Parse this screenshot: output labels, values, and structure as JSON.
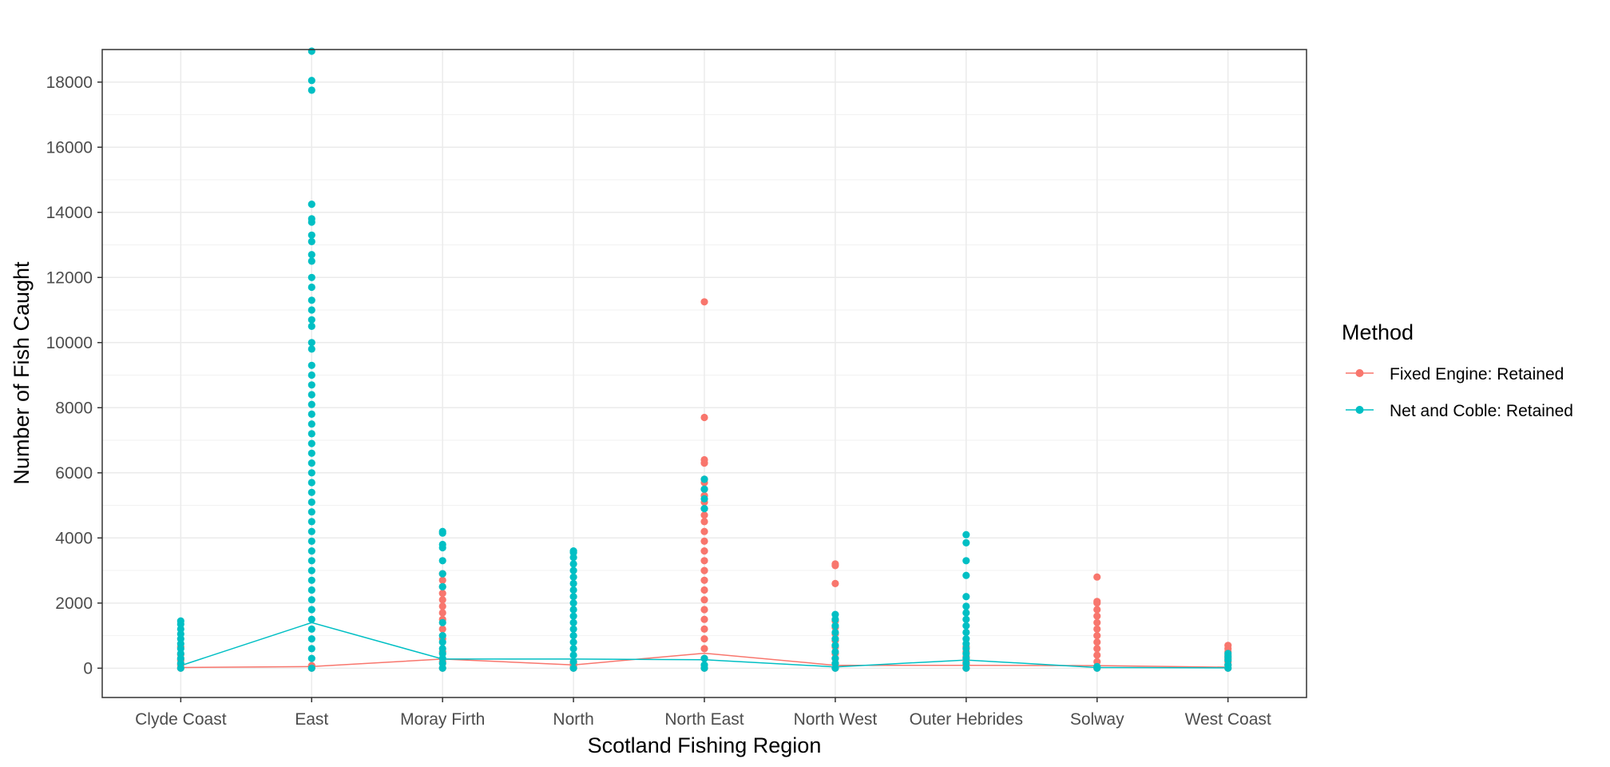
{
  "chart_data": {
    "type": "scatter",
    "xlabel": "Scotland Fishing Region",
    "ylabel": "Number of Fish Caught",
    "categories": [
      "Clyde Coast",
      "East",
      "Moray Firth",
      "North",
      "North East",
      "North West",
      "Outer Hebrides",
      "Solway",
      "West Coast"
    ],
    "ylim": [
      -900,
      19000
    ],
    "yticks": [
      0,
      2000,
      4000,
      6000,
      8000,
      10000,
      12000,
      14000,
      16000,
      18000
    ],
    "grid": true,
    "legend": {
      "title": "Method",
      "position": "right",
      "items": [
        "Fixed Engine: Retained",
        "Net and Coble: Retained"
      ]
    },
    "series": [
      {
        "name": "Fixed Engine: Retained",
        "color": "#F8766D",
        "mean_line": [
          20,
          50,
          280,
          100,
          460,
          90,
          90,
          80,
          30
        ],
        "points": [
          [
            0,
            0,
            100,
            250,
            420,
            650
          ],
          [
            1,
            0,
            80
          ],
          [
            2,
            0,
            200,
            500,
            900,
            1200,
            1500,
            1700,
            1900,
            2100,
            2300,
            2500,
            2700,
            2900
          ],
          [
            3,
            0,
            60,
            150
          ],
          [
            4,
            0,
            300,
            600,
            900,
            1200,
            1500,
            1800,
            2100,
            2400,
            2700,
            3000,
            3300,
            3600,
            3900,
            4200,
            4500,
            4700,
            4900,
            5100,
            5300,
            5500,
            5700,
            5800,
            6300,
            6400,
            7700,
            11250
          ],
          [
            5,
            0,
            150,
            300,
            450,
            650,
            850,
            1050,
            1250,
            1450,
            2600,
            3150,
            3200
          ],
          [
            6,
            0,
            100,
            200,
            350,
            500,
            650
          ],
          [
            7,
            0,
            200,
            400,
            600,
            800,
            1000,
            1200,
            1400,
            1600,
            1800,
            2000,
            2050,
            2800
          ],
          [
            8,
            0,
            100,
            200,
            300,
            400,
            500,
            600,
            700
          ]
        ]
      },
      {
        "name": "Net and Coble: Retained",
        "color": "#00BFC4",
        "mean_line": [
          80,
          1400,
          280,
          280,
          260,
          40,
          250,
          20,
          10
        ],
        "points": [
          [
            0,
            0,
            150,
            300,
            450,
            600,
            750,
            900,
            1050,
            1200,
            1350,
            1450
          ],
          [
            1,
            0,
            300,
            600,
            900,
            1200,
            1500,
            1800,
            2100,
            2400,
            2700,
            3000,
            3300,
            3600,
            3900,
            4200,
            4500,
            4800,
            5100,
            5400,
            5700,
            6000,
            6300,
            6600,
            6900,
            7200,
            7500,
            7800,
            8100,
            8400,
            8700,
            9000,
            9300,
            9800,
            10000,
            10500,
            10700,
            11000,
            11300,
            11700,
            12000,
            12500,
            12700,
            13100,
            13300,
            13700,
            13800,
            14250,
            17750,
            18050,
            18950
          ],
          [
            2,
            0,
            150,
            300,
            450,
            600,
            800,
            1000,
            1400,
            2500,
            2900,
            3300,
            3700,
            3800,
            4150,
            4200
          ],
          [
            3,
            0,
            200,
            400,
            600,
            800,
            1000,
            1200,
            1400,
            1600,
            1800,
            2000,
            2200,
            2400,
            2600,
            2800,
            3000,
            3200,
            3400,
            3550,
            3600
          ],
          [
            4,
            0,
            100,
            300,
            4900,
            5200,
            5500,
            5800
          ],
          [
            5,
            0,
            150,
            300,
            500,
            700,
            900,
            1100,
            1300,
            1500,
            1650
          ],
          [
            6,
            0,
            150,
            300,
            450,
            600,
            750,
            900,
            1100,
            1300,
            1500,
            1700,
            1900,
            2200,
            2850,
            3300,
            3850,
            4100
          ],
          [
            7,
            0,
            50
          ],
          [
            8,
            0,
            100,
            250,
            350,
            450
          ]
        ]
      }
    ]
  }
}
